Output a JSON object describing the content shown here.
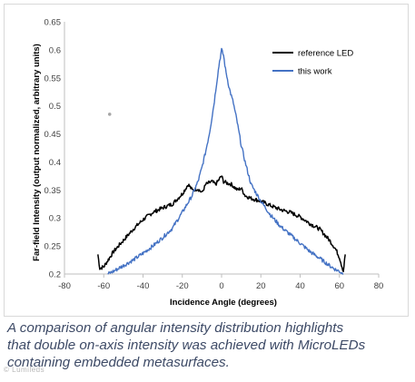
{
  "caption": {
    "lines": [
      "A comparison of angular intensity distribution highlights",
      "that double on-axis intensity was achieved with MicroLEDs",
      "containing embedded metasurfaces."
    ]
  },
  "watermark": "© Lumileds",
  "chart_data": {
    "type": "line",
    "title": "",
    "xlabel": "Incidence Angle (degrees)",
    "ylabel": "Far-field Intensity (output normalized, arbitrary units)",
    "xlim": [
      -80,
      80
    ],
    "ylim": [
      0.2,
      0.65
    ],
    "xticks": [
      -80,
      -60,
      -40,
      -20,
      0,
      20,
      40,
      60,
      80
    ],
    "yticks": [
      0.2,
      0.25,
      0.3,
      0.35,
      0.4,
      0.45,
      0.5,
      0.55,
      0.6,
      0.65
    ],
    "grid": "none",
    "legend_position": "top-right",
    "series": [
      {
        "name": "reference LED",
        "color": "#000000",
        "x": [
          -63,
          -62,
          -60,
          -55,
          -50,
          -45,
          -40,
          -35,
          -30,
          -25,
          -20,
          -17,
          -15,
          -12,
          -10,
          -8,
          -5,
          -3,
          -1,
          0,
          1,
          3,
          5,
          8,
          10,
          12,
          15,
          20,
          25,
          30,
          35,
          40,
          45,
          50,
          55,
          58,
          60,
          62,
          63
        ],
        "y": [
          0.235,
          0.21,
          0.213,
          0.24,
          0.26,
          0.28,
          0.297,
          0.31,
          0.318,
          0.325,
          0.343,
          0.36,
          0.35,
          0.352,
          0.345,
          0.36,
          0.365,
          0.36,
          0.37,
          0.375,
          0.365,
          0.362,
          0.36,
          0.35,
          0.353,
          0.34,
          0.335,
          0.33,
          0.322,
          0.315,
          0.31,
          0.302,
          0.29,
          0.28,
          0.26,
          0.245,
          0.23,
          0.205,
          0.235
        ]
      },
      {
        "name": "this work",
        "color": "#4472c4",
        "x": [
          -58,
          -55,
          -50,
          -45,
          -40,
          -35,
          -30,
          -25,
          -20,
          -15,
          -12,
          -10,
          -8,
          -6,
          -4,
          -2,
          -1,
          0,
          1,
          2,
          4,
          6,
          8,
          10,
          12,
          15,
          20,
          25,
          30,
          35,
          40,
          45,
          50,
          55,
          58,
          60,
          62
        ],
        "y": [
          0.2,
          0.205,
          0.215,
          0.225,
          0.237,
          0.25,
          0.265,
          0.282,
          0.31,
          0.34,
          0.365,
          0.39,
          0.42,
          0.455,
          0.5,
          0.555,
          0.58,
          0.6,
          0.59,
          0.565,
          0.53,
          0.505,
          0.47,
          0.43,
          0.4,
          0.36,
          0.33,
          0.305,
          0.285,
          0.27,
          0.255,
          0.24,
          0.228,
          0.215,
          0.208,
          0.205,
          0.2
        ]
      }
    ]
  }
}
